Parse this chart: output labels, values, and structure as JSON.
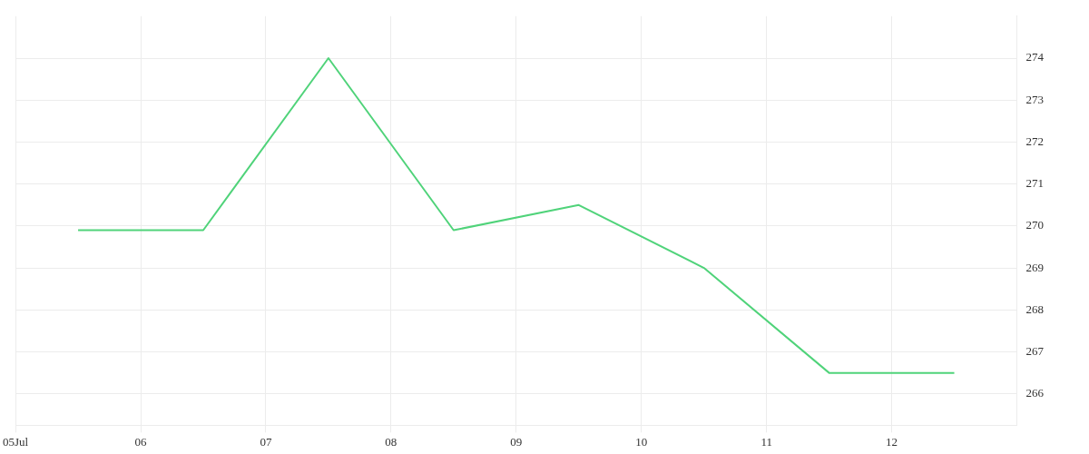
{
  "chart_data": {
    "type": "line",
    "x": [
      "--07-05T12:00",
      "--07-06T12:00",
      "--07-07T12:00",
      "--07-08T12:00",
      "--07-09T12:00",
      "--07-10T12:00",
      "--07-11T12:00",
      "--07-12T12:00"
    ],
    "series": [
      {
        "color": "#50d37a",
        "values": [
          269.9,
          269.9,
          274,
          269.9,
          270.5,
          269,
          266.5,
          266.5
        ]
      }
    ],
    "xlim": [
      "--07-05",
      "--07-13"
    ],
    "xticks": [
      {
        "value": "--07-05",
        "label": "05Jul"
      },
      {
        "value": "--07-06",
        "label": "06"
      },
      {
        "value": "--07-07",
        "label": "07"
      },
      {
        "value": "--07-08",
        "label": "08"
      },
      {
        "value": "--07-09",
        "label": "09"
      },
      {
        "value": "--07-10",
        "label": "10"
      },
      {
        "value": "--07-11",
        "label": "11"
      },
      {
        "value": "--07-12",
        "label": "12"
      }
    ],
    "ylim": [
      265.25,
      275
    ],
    "yticks": [
      266,
      267,
      268,
      269,
      270,
      271,
      272,
      273,
      274
    ],
    "grid": true,
    "legend": false
  }
}
